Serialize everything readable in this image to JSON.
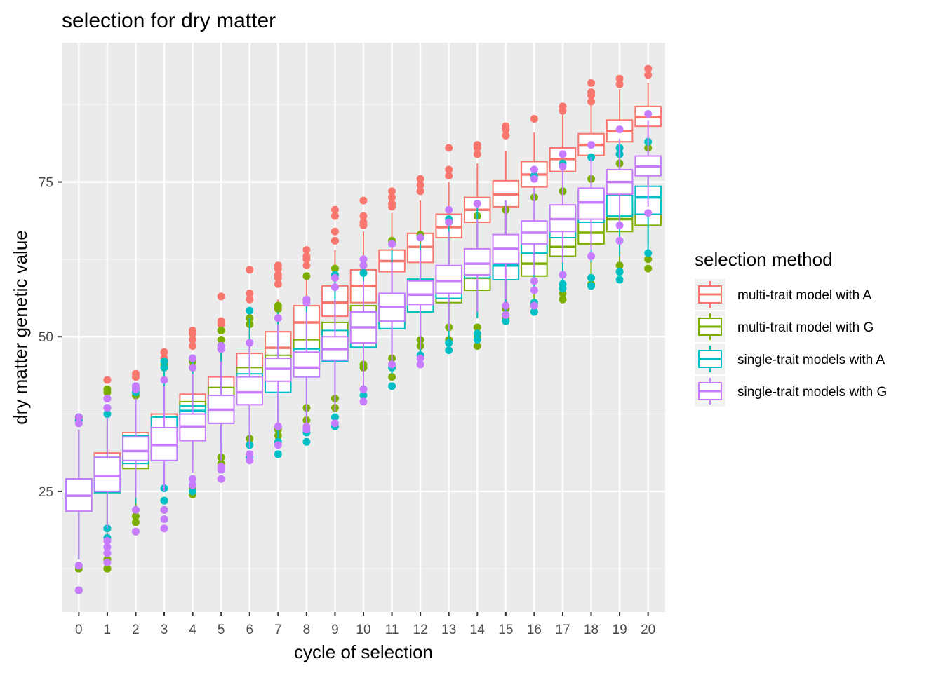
{
  "chart_data": {
    "type": "boxplot",
    "title": "selection for dry matter",
    "xlabel": "cycle of selection",
    "ylabel": "dry matter genetic value",
    "x": [
      "0",
      "1",
      "2",
      "3",
      "4",
      "5",
      "6",
      "7",
      "8",
      "9",
      "10",
      "11",
      "12",
      "13",
      "14",
      "15",
      "16",
      "17",
      "18",
      "19",
      "20"
    ],
    "ylim": [
      5.5,
      97.5
    ],
    "yticks": [
      25,
      50,
      75
    ],
    "grid": true,
    "legend": {
      "title": "selection method",
      "position": "right"
    },
    "series": [
      {
        "name": "multi-trait model with A",
        "color": "#F8766D",
        "median": [
          24.3,
          27.5,
          31.3,
          33.0,
          38.3,
          40.5,
          44.5,
          48.2,
          52.3,
          55.5,
          58.2,
          62.2,
          64.5,
          67.7,
          70.5,
          73.0,
          76.2,
          78.7,
          81.0,
          83.2,
          85.5
        ],
        "q1": [
          21.8,
          25.0,
          29.5,
          30.0,
          36.7,
          38.5,
          42.0,
          46.0,
          49.3,
          53.3,
          55.5,
          60.5,
          62.0,
          66.0,
          68.5,
          71.0,
          74.2,
          76.7,
          79.3,
          81.5,
          84.0
        ],
        "q3": [
          27.0,
          31.2,
          34.5,
          37.5,
          40.7,
          43.5,
          47.3,
          50.8,
          55.0,
          58.2,
          60.8,
          64.0,
          66.7,
          69.8,
          72.5,
          75.2,
          78.3,
          80.5,
          82.8,
          85.0,
          87.2
        ],
        "min": [
          14.0,
          18.0,
          24.0,
          25.0,
          30.0,
          33.0,
          36.0,
          40.0,
          42.0,
          46.0,
          49.0,
          54.0,
          56.0,
          59.0,
          62.0,
          65.0,
          68.0,
          71.0,
          73.0,
          76.0,
          78.0
        ],
        "max": [
          35.0,
          38.0,
          41.0,
          44.0,
          47.0,
          50.0,
          54.0,
          56.0,
          60.0,
          64.0,
          67.0,
          70.0,
          72.0,
          75.0,
          78.0,
          80.0,
          83.0,
          86.0,
          88.0,
          90.0,
          91.0
        ],
        "outliers": [
          [
            9,
            13,
            36.5,
            37
          ],
          [
            12.5,
            40,
            43
          ],
          [
            43.5,
            44
          ],
          [
            46.5,
            47.5
          ],
          [
            48.5,
            49.5,
            50.5,
            51
          ],
          [
            52,
            52.5,
            56.5
          ],
          [
            56,
            57,
            60.8
          ],
          [
            58.5,
            59.5,
            60,
            61,
            61.5
          ],
          [
            61.5,
            62.5,
            63,
            64
          ],
          [
            65.5,
            67,
            69.5,
            70.5
          ],
          [
            68,
            68.5,
            69.5,
            72
          ],
          [
            71,
            71.5,
            72.5,
            73.5
          ],
          [
            73.5,
            74.5,
            75.5
          ],
          [
            76,
            77,
            80.5
          ],
          [
            79.5,
            80.5,
            81
          ],
          [
            82.5,
            83.5,
            84
          ],
          [
            85.2
          ],
          [
            86.5,
            87.2
          ],
          [
            88,
            89,
            89.5,
            91
          ],
          [
            90.8,
            91.7
          ],
          [
            92.3,
            93.3
          ]
        ]
      },
      {
        "name": "multi-trait model with G",
        "color": "#7CAE00",
        "median": [
          24.3,
          27.0,
          30.0,
          35.0,
          38.5,
          40.0,
          43.5,
          46.0,
          47.0,
          50.0,
          53.0,
          55.0,
          57.0,
          58.0,
          59.5,
          61.8,
          61.8,
          64.5,
          66.8,
          69.0,
          70.0
        ],
        "q1": [
          21.8,
          24.8,
          28.7,
          30.0,
          37.5,
          37.5,
          40.5,
          43.0,
          45.0,
          47.5,
          50.0,
          52.0,
          54.5,
          55.5,
          57.5,
          59.5,
          59.8,
          63.0,
          65.0,
          67.0,
          68.0
        ],
        "q3": [
          27.0,
          30.5,
          34.0,
          35.5,
          39.5,
          41.8,
          45.0,
          47.0,
          49.5,
          52.3,
          55.0,
          56.5,
          59.0,
          61.0,
          61.8,
          64.0,
          64.0,
          67.0,
          69.0,
          71.0,
          72.0
        ],
        "min": [
          14.0,
          19.0,
          22.0,
          26.0,
          30.0,
          31.0,
          34.0,
          36.0,
          38.0,
          41.0,
          46.0,
          48.0,
          50.0,
          52.0,
          53.0,
          55.0,
          56.0,
          59.0,
          60.0,
          62.0,
          65.0
        ],
        "max": [
          35.0,
          36.0,
          40.0,
          44.0,
          45.0,
          48.0,
          51.0,
          54.0,
          55.0,
          58.0,
          60.0,
          63.0,
          66.0,
          67.0,
          68.0,
          69.0,
          70.0,
          72.0,
          74.0,
          77.0,
          79.0
        ],
        "outliers": [
          [
            9,
            12.5,
            36.5,
            37
          ],
          [
            12.5,
            14,
            41,
            41.5
          ],
          [
            18.5,
            20,
            21,
            40.5
          ],
          [
            22,
            23.5,
            45,
            45.5
          ],
          [
            24.5,
            25.5,
            45,
            46
          ],
          [
            29.5,
            30.5,
            49.5,
            51
          ],
          [
            32.5,
            33.5,
            52,
            53
          ],
          [
            34,
            35,
            54.5,
            55
          ],
          [
            36.5,
            38.5,
            56,
            59.8
          ],
          [
            38.5,
            40,
            59.5,
            61
          ],
          [
            45,
            45.5,
            61.5
          ],
          [
            43.5,
            46.5,
            65.5
          ],
          [
            48.5,
            49.5,
            66.5
          ],
          [
            49.5,
            51.5,
            68.5
          ],
          [
            48.5,
            50,
            51.5,
            69.5
          ],
          [
            53,
            54.5,
            70.5
          ],
          [
            54,
            55,
            72.5
          ],
          [
            56,
            57,
            73.5
          ],
          [
            58.5,
            59.5,
            75.5
          ],
          [
            60.5,
            61.5,
            78
          ],
          [
            61,
            62.5,
            80.5
          ]
        ]
      },
      {
        "name": "single-trait models with A",
        "color": "#00BFC4",
        "median": [
          24.3,
          27.0,
          31.3,
          33.0,
          38.0,
          38.0,
          42.0,
          44.0,
          45.5,
          48.5,
          51.5,
          54.8,
          57.0,
          58.5,
          61.5,
          61.5,
          66.0,
          68.0,
          71.0,
          73.0,
          72.5
        ],
        "q1": [
          21.8,
          24.8,
          29.5,
          30.0,
          36.5,
          36.0,
          40.0,
          41.0,
          43.5,
          46.0,
          48.3,
          51.3,
          54.0,
          56.2,
          59.5,
          59.2,
          63.5,
          66.0,
          68.5,
          69.5,
          69.8
        ],
        "q3": [
          27.0,
          30.5,
          34.0,
          37.0,
          38.8,
          40.5,
          44.0,
          46.5,
          48.0,
          51.0,
          53.5,
          56.8,
          59.3,
          61.0,
          63.0,
          63.5,
          68.0,
          70.5,
          73.5,
          75.5,
          74.3
        ],
        "min": [
          14.0,
          19.0,
          23.0,
          25.0,
          30.0,
          31.0,
          33.0,
          33.0,
          35.0,
          39.0,
          42.0,
          44.0,
          47.0,
          49.0,
          53.0,
          54.0,
          57.0,
          59.0,
          62.0,
          63.0,
          64.0
        ],
        "max": [
          35.0,
          37.0,
          40.0,
          45.0,
          46.0,
          48.0,
          53.0,
          54.0,
          56.0,
          59.0,
          62.0,
          64.0,
          65.0,
          68.0,
          71.0,
          72.0,
          74.0,
          77.0,
          78.0,
          80.0,
          81.0
        ],
        "outliers": [
          [
            9,
            13,
            36.5,
            37
          ],
          [
            17.5,
            19,
            37.5,
            38.5
          ],
          [
            41,
            42
          ],
          [
            23.5,
            25.5,
            45,
            46
          ],
          [
            25,
            26,
            46.5
          ],
          [
            28.5,
            48.5
          ],
          [
            30.5,
            32.5,
            54.2
          ],
          [
            31,
            33
          ],
          [
            33,
            34.5
          ],
          [
            35.5,
            37,
            60
          ],
          [
            40.5,
            41.5,
            60.3
          ],
          [
            42,
            45,
            65
          ],
          [
            47,
            66
          ],
          [
            47.8,
            49,
            69
          ],
          [
            49.5,
            50.5
          ],
          [
            52.5,
            53.5
          ],
          [
            54,
            55.5,
            76
          ],
          [
            57.8,
            58.5,
            78
          ],
          [
            58.2,
            59.5,
            79
          ],
          [
            59.2,
            60.5,
            79.5,
            80.5
          ],
          [
            63.5,
            81.5
          ]
        ]
      },
      {
        "name": "single-trait models with G",
        "color": "#C77CFF",
        "median": [
          24.3,
          27.5,
          31.5,
          32.5,
          35.5,
          38.2,
          41.0,
          44.8,
          45.0,
          48.0,
          51.5,
          54.8,
          56.8,
          59.0,
          61.8,
          64.2,
          66.8,
          69.0,
          71.7,
          75.0,
          77.5
        ],
        "q1": [
          21.8,
          25.0,
          30.0,
          30.0,
          33.2,
          36.0,
          39.0,
          42.8,
          43.5,
          46.2,
          49.0,
          52.5,
          55.2,
          57.0,
          60.0,
          61.8,
          65.0,
          67.0,
          69.0,
          73.0,
          76.0
        ],
        "q3": [
          27.0,
          30.5,
          33.8,
          35.3,
          37.5,
          40.5,
          43.5,
          46.5,
          47.5,
          50.0,
          54.0,
          57.0,
          59.0,
          61.5,
          64.2,
          66.5,
          68.7,
          71.3,
          74.0,
          77.0,
          79.2
        ],
        "min": [
          14.0,
          19.0,
          24.0,
          25.0,
          28.0,
          30.0,
          32.0,
          35.0,
          36.0,
          38.0,
          42.0,
          46.0,
          48.0,
          51.0,
          54.0,
          56.0,
          60.0,
          62.0,
          64.0,
          68.0,
          71.0
        ],
        "max": [
          35.0,
          37.0,
          40.0,
          42.0,
          44.0,
          46.0,
          49.0,
          52.0,
          54.0,
          56.0,
          59.0,
          62.0,
          64.0,
          67.0,
          69.0,
          72.0,
          74.0,
          77.0,
          79.0,
          82.0,
          85.0
        ],
        "outliers": [
          [
            9,
            13,
            36,
            37
          ],
          [
            13.5,
            15,
            16,
            17,
            38.5,
            40
          ],
          [
            18.5,
            22,
            41.5,
            42
          ],
          [
            19,
            20.5,
            22,
            43
          ],
          [
            26,
            27,
            45,
            46.5
          ],
          [
            27,
            28.5,
            29,
            48,
            48.5
          ],
          [
            30,
            31,
            49
          ],
          [
            32.5,
            35.5,
            53
          ],
          [
            35,
            35.5,
            55.5,
            56
          ],
          [
            36,
            58,
            59.5
          ],
          [
            39.5,
            41.5,
            61.5,
            62.5
          ],
          [
            45.5,
            65
          ],
          [
            45.5,
            46.5,
            66
          ],
          [
            68.5,
            70.5
          ],
          [
            71.5
          ],
          [
            53.5,
            55
          ],
          [
            55,
            57.5,
            59,
            75.5,
            77
          ],
          [
            60,
            77.5,
            79.5
          ],
          [
            63,
            81
          ],
          [
            65.5,
            68,
            83.5
          ],
          [
            70,
            86
          ]
        ]
      }
    ]
  }
}
